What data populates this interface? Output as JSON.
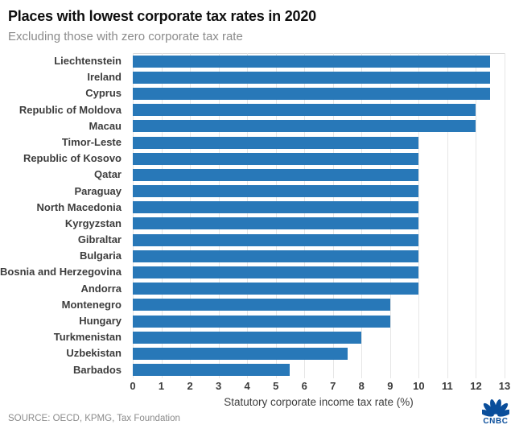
{
  "header": {
    "title": "Places with lowest corporate tax rates in 2020",
    "subtitle": "Excluding those with zero corporate tax rate"
  },
  "chart_data": {
    "type": "bar",
    "orientation": "horizontal",
    "title": "Places with lowest corporate tax rates in 2020",
    "subtitle": "Excluding those with zero corporate tax rate",
    "categories": [
      "Liechtenstein",
      "Ireland",
      "Cyprus",
      "Republic of Moldova",
      "Macau",
      "Timor-Leste",
      "Republic of Kosovo",
      "Qatar",
      "Paraguay",
      "North Macedonia",
      "Kyrgyzstan",
      "Gibraltar",
      "Bulgaria",
      "Bosnia and Herzegovina",
      "Andorra",
      "Montenegro",
      "Hungary",
      "Turkmenistan",
      "Uzbekistan",
      "Barbados"
    ],
    "values": [
      12.5,
      12.5,
      12.5,
      12,
      12,
      10,
      10,
      10,
      10,
      10,
      10,
      10,
      10,
      10,
      10,
      9,
      9,
      8,
      7.5,
      5.5
    ],
    "xlabel": "Statutory corporate income tax rate (%)",
    "ylabel": "",
    "xlim": [
      0,
      13
    ],
    "xticks": [
      0,
      1,
      2,
      3,
      4,
      5,
      6,
      7,
      8,
      9,
      10,
      11,
      12,
      13
    ],
    "grid": true,
    "legend": false
  },
  "footer": {
    "source": "SOURCE: OECD, KPMG, Tax Foundation",
    "logo_text": "CNBC"
  },
  "colors": {
    "bar": "#2878b8",
    "grid": "#e6e6e6",
    "border": "#d9d9d9",
    "title": "#0f0f0f",
    "muted": "#8b8b8b",
    "text": "#3d3d3d",
    "logo": "#0a4e9b"
  }
}
